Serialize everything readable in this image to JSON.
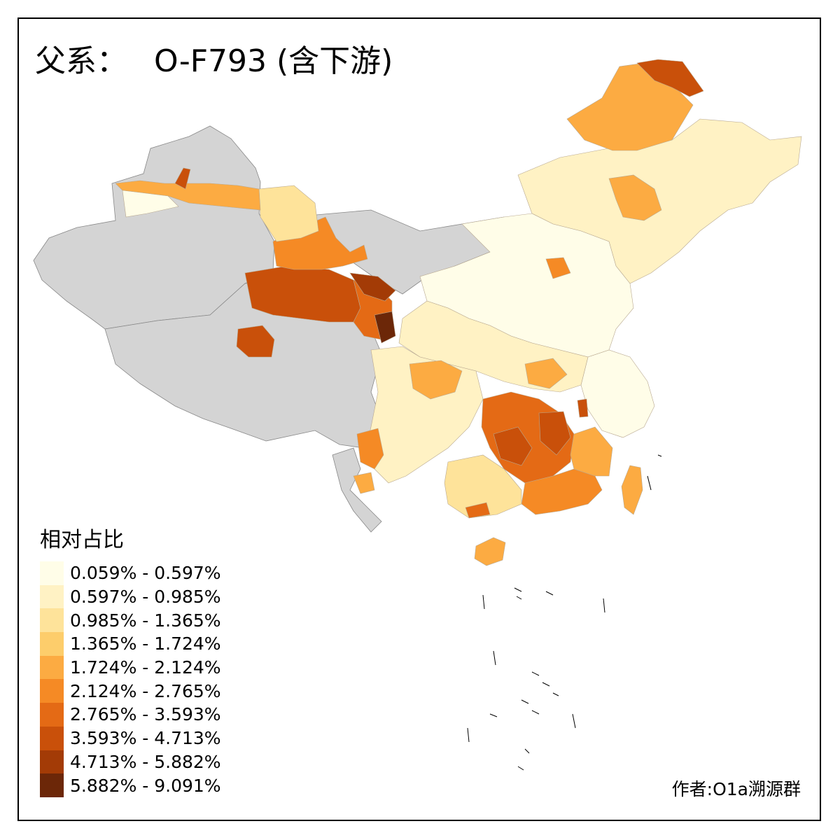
{
  "title": {
    "prefix": "父系：",
    "lineage": "O-F793 (含下游)"
  },
  "legend": {
    "title": "相对占比",
    "classes": [
      {
        "label": "0.059% - 0.597%",
        "color": "#fffde8"
      },
      {
        "label": "0.597% - 0.985%",
        "color": "#fff2c4"
      },
      {
        "label": "0.985% - 1.365%",
        "color": "#fee39a"
      },
      {
        "label": "1.365% - 1.724%",
        "color": "#fdcd6b"
      },
      {
        "label": "1.724% - 2.124%",
        "color": "#fcab42"
      },
      {
        "label": "2.124% - 2.765%",
        "color": "#f58a25"
      },
      {
        "label": "2.765% - 3.593%",
        "color": "#e46a15"
      },
      {
        "label": "3.593% - 4.713%",
        "color": "#c9500a"
      },
      {
        "label": "4.713% - 5.882%",
        "color": "#a33b06"
      },
      {
        "label": "5.882% - 9.091%",
        "color": "#6c2708"
      }
    ]
  },
  "no_data_color": "#d4d4d4",
  "credit": "作者:O1a溯源群"
}
